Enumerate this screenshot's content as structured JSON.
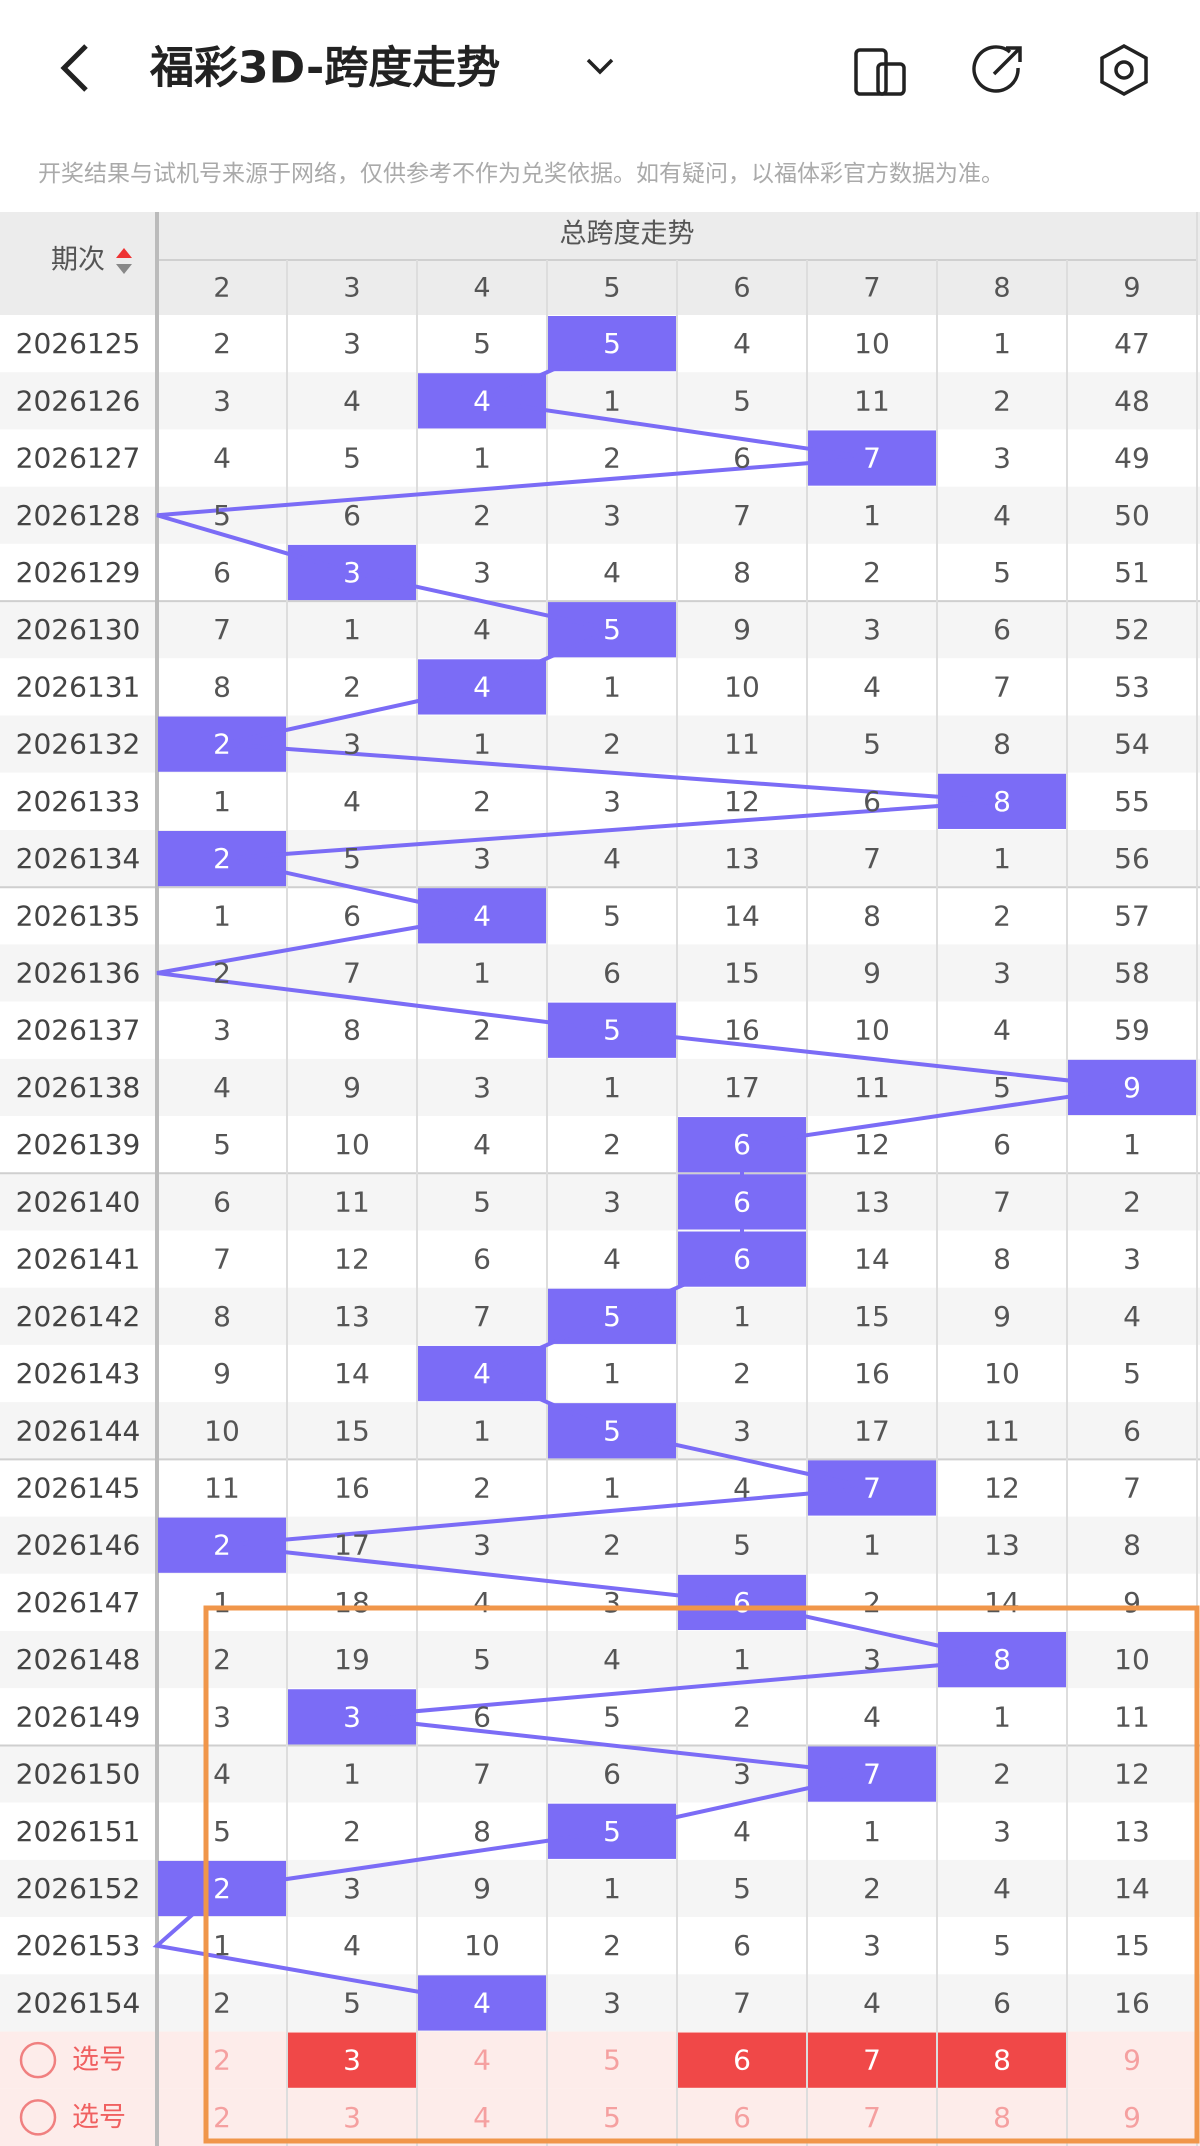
{
  "header": {
    "title": "福彩3D-跨度走势"
  },
  "notice": "开奖结果与试机号来源于网络，仅供参考不作为兑奖依据。如有疑问，以福体彩官方数据为准。",
  "table": {
    "period_header": "期次",
    "group_header": "总跨度走势",
    "columns": [
      2,
      3,
      4,
      5,
      6,
      7,
      8,
      9
    ],
    "rows": [
      {
        "period": "2026125",
        "cells": [
          2,
          3,
          5,
          5,
          4,
          10,
          1,
          47
        ],
        "hit": 3
      },
      {
        "period": "2026126",
        "cells": [
          3,
          4,
          4,
          1,
          5,
          11,
          2,
          48
        ],
        "hit": 2
      },
      {
        "period": "2026127",
        "cells": [
          4,
          5,
          1,
          2,
          6,
          7,
          3,
          49
        ],
        "hit": 5
      },
      {
        "period": "2026128",
        "cells": [
          5,
          6,
          2,
          3,
          7,
          1,
          4,
          50
        ],
        "hit": null
      },
      {
        "period": "2026129",
        "cells": [
          6,
          3,
          3,
          4,
          8,
          2,
          5,
          51
        ],
        "hit": 1
      },
      {
        "period": "2026130",
        "cells": [
          7,
          1,
          4,
          5,
          9,
          3,
          6,
          52
        ],
        "hit": 3
      },
      {
        "period": "2026131",
        "cells": [
          8,
          2,
          4,
          1,
          10,
          4,
          7,
          53
        ],
        "hit": 2
      },
      {
        "period": "2026132",
        "cells": [
          2,
          3,
          1,
          2,
          11,
          5,
          8,
          54
        ],
        "hit": 0
      },
      {
        "period": "2026133",
        "cells": [
          1,
          4,
          2,
          3,
          12,
          6,
          8,
          55
        ],
        "hit": 6
      },
      {
        "period": "2026134",
        "cells": [
          2,
          5,
          3,
          4,
          13,
          7,
          1,
          56
        ],
        "hit": 0
      },
      {
        "period": "2026135",
        "cells": [
          1,
          6,
          4,
          5,
          14,
          8,
          2,
          57
        ],
        "hit": 2
      },
      {
        "period": "2026136",
        "cells": [
          2,
          7,
          1,
          6,
          15,
          9,
          3,
          58
        ],
        "hit": null
      },
      {
        "period": "2026137",
        "cells": [
          3,
          8,
          2,
          5,
          16,
          10,
          4,
          59
        ],
        "hit": 3
      },
      {
        "period": "2026138",
        "cells": [
          4,
          9,
          3,
          1,
          17,
          11,
          5,
          9
        ],
        "hit": 7
      },
      {
        "period": "2026139",
        "cells": [
          5,
          10,
          4,
          2,
          6,
          12,
          6,
          1
        ],
        "hit": 4
      },
      {
        "period": "2026140",
        "cells": [
          6,
          11,
          5,
          3,
          6,
          13,
          7,
          2
        ],
        "hit": 4
      },
      {
        "period": "2026141",
        "cells": [
          7,
          12,
          6,
          4,
          6,
          14,
          8,
          3
        ],
        "hit": 4
      },
      {
        "period": "2026142",
        "cells": [
          8,
          13,
          7,
          5,
          1,
          15,
          9,
          4
        ],
        "hit": 3
      },
      {
        "period": "2026143",
        "cells": [
          9,
          14,
          4,
          1,
          2,
          16,
          10,
          5
        ],
        "hit": 2
      },
      {
        "period": "2026144",
        "cells": [
          10,
          15,
          1,
          5,
          3,
          17,
          11,
          6
        ],
        "hit": 3
      },
      {
        "period": "2026145",
        "cells": [
          11,
          16,
          2,
          1,
          4,
          7,
          12,
          7
        ],
        "hit": 5
      },
      {
        "period": "2026146",
        "cells": [
          2,
          17,
          3,
          2,
          5,
          1,
          13,
          8
        ],
        "hit": 0
      },
      {
        "period": "2026147",
        "cells": [
          1,
          18,
          4,
          3,
          6,
          2,
          14,
          9
        ],
        "hit": 4
      },
      {
        "period": "2026148",
        "cells": [
          2,
          19,
          5,
          4,
          1,
          3,
          8,
          10
        ],
        "hit": 6
      },
      {
        "period": "2026149",
        "cells": [
          3,
          3,
          6,
          5,
          2,
          4,
          1,
          11
        ],
        "hit": 1
      },
      {
        "period": "2026150",
        "cells": [
          4,
          1,
          7,
          6,
          3,
          7,
          2,
          12
        ],
        "hit": 5
      },
      {
        "period": "2026151",
        "cells": [
          5,
          2,
          8,
          5,
          4,
          1,
          3,
          13
        ],
        "hit": 3
      },
      {
        "period": "2026152",
        "cells": [
          2,
          3,
          9,
          1,
          5,
          2,
          4,
          14
        ],
        "hit": 0
      },
      {
        "period": "2026153",
        "cells": [
          1,
          4,
          10,
          2,
          6,
          3,
          5,
          15
        ],
        "hit": null
      },
      {
        "period": "2026154",
        "cells": [
          2,
          5,
          4,
          3,
          7,
          4,
          6,
          16
        ],
        "hit": 2
      }
    ],
    "pick_rows": [
      {
        "label": "选号",
        "numbers": [
          2,
          3,
          4,
          5,
          6,
          7,
          8,
          9
        ],
        "selected": [
          false,
          true,
          false,
          false,
          true,
          true,
          true,
          false
        ]
      },
      {
        "label": "选号",
        "numbers": [
          2,
          3,
          4,
          5,
          6,
          7,
          8,
          9
        ],
        "selected": [
          false,
          false,
          false,
          false,
          false,
          false,
          false,
          false
        ]
      }
    ]
  }
}
